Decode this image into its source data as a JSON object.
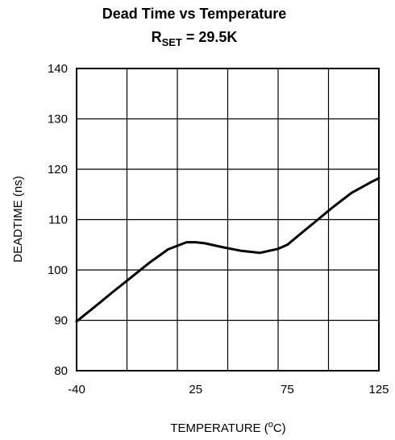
{
  "chart_data": {
    "type": "line",
    "title": "Dead Time vs Temperature",
    "subtitle": {
      "main": "R",
      "subscript": "SET",
      "rest": " = 29.5K"
    },
    "xlabel": "TEMPERATURE (",
    "xlabel_sup": "o",
    "xlabel_end": "C)",
    "ylabel": "DEADTIME (ns)",
    "xlim": [
      -40,
      125
    ],
    "ylim": [
      80,
      140
    ],
    "x_ticks": [
      -40,
      25,
      75,
      125
    ],
    "x_tick_labels": [
      "-40",
      "25",
      "75",
      "125"
    ],
    "x_gridlines": [
      -40,
      -12.5,
      15,
      42.5,
      70,
      97.5,
      125
    ],
    "y_ticks": [
      80,
      90,
      100,
      110,
      120,
      130,
      140
    ],
    "y_tick_labels": [
      "80",
      "90",
      "100",
      "110",
      "120",
      "130",
      "140"
    ],
    "grid": true,
    "series": [
      {
        "x": [
          -40,
          -30,
          -20,
          -10,
          0,
          10,
          20,
          25,
          30,
          35,
          40,
          50,
          60,
          65,
          70,
          75,
          80,
          90,
          100,
          110,
          120,
          125
        ],
        "y": [
          89.8,
          92.7,
          95.7,
          98.6,
          101.5,
          104.1,
          105.5,
          105.5,
          105.3,
          104.9,
          104.5,
          103.8,
          103.4,
          103.8,
          104.2,
          105.0,
          106.5,
          109.5,
          112.5,
          115.3,
          117.3,
          118.2
        ]
      }
    ],
    "colors": {
      "line": "#000000",
      "grid": "#000000",
      "background": "#ffffff"
    }
  }
}
